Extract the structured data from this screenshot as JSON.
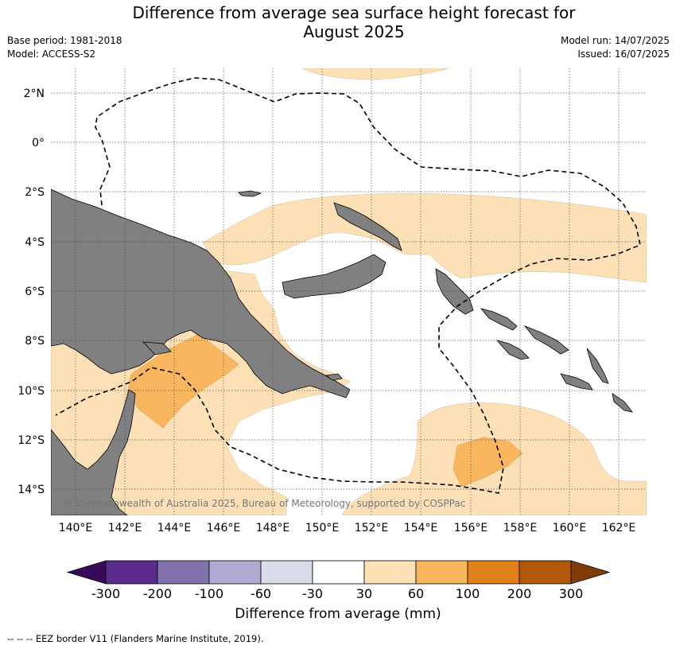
{
  "title_line1": "Difference from average sea surface height forecast for",
  "title_line2": "August 2025",
  "meta_left": {
    "base_period": "Base period: 1981-2018",
    "model": "Model: ACCESS-S2"
  },
  "meta_right": {
    "model_run": "Model run: 14/07/2025",
    "issued": "Issued: 16/07/2025"
  },
  "copyright": "© Commonwealth of Australia 2025, Bureau of Meteorology, supported by COSPPac",
  "colorbar": {
    "label": "Difference from average (mm)",
    "ticks": [
      "-300",
      "-200",
      "-100",
      "-60",
      "-30",
      "30",
      "60",
      "100",
      "200",
      "300"
    ],
    "colors": [
      "#3a0a5a",
      "#5a2b8c",
      "#8072ad",
      "#b0a9d1",
      "#d9dbea",
      "#ffffff",
      "#fde0b6",
      "#f9b65f",
      "#e28018",
      "#b35806",
      "#7f3b08"
    ]
  },
  "footer": "--  --  -- EEZ border V11 (Flanders Marine Institute, 2019).",
  "map": {
    "lon_labels": [
      "140°E",
      "142°E",
      "144°E",
      "146°E",
      "148°E",
      "150°E",
      "152°E",
      "154°E",
      "156°E",
      "158°E",
      "160°E",
      "162°E"
    ],
    "lat_labels": [
      "2°N",
      "0°",
      "2°S",
      "4°S",
      "6°S",
      "8°S",
      "10°S",
      "12°S",
      "14°S"
    ],
    "land_color": "#808080",
    "band_30_60_color": "#fde0b6",
    "band_60_100_color": "#f9b65f"
  }
}
